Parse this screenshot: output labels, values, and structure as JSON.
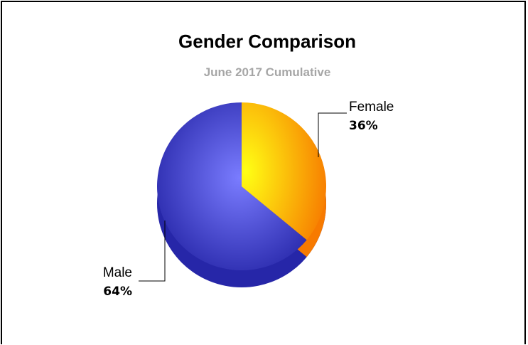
{
  "chart_data": {
    "type": "pie",
    "title": "Gender Comparison",
    "subtitle": "June 2017 Cumulative",
    "categories": [
      "Female",
      "Male"
    ],
    "values": [
      36,
      64
    ],
    "labels": [
      "36%",
      "64%"
    ],
    "legend": "none",
    "colors": {
      "female_light": "#ffff14",
      "female_dark": "#f77a00",
      "male_light": "#7a7cff",
      "male_dark": "#2626a8"
    }
  }
}
